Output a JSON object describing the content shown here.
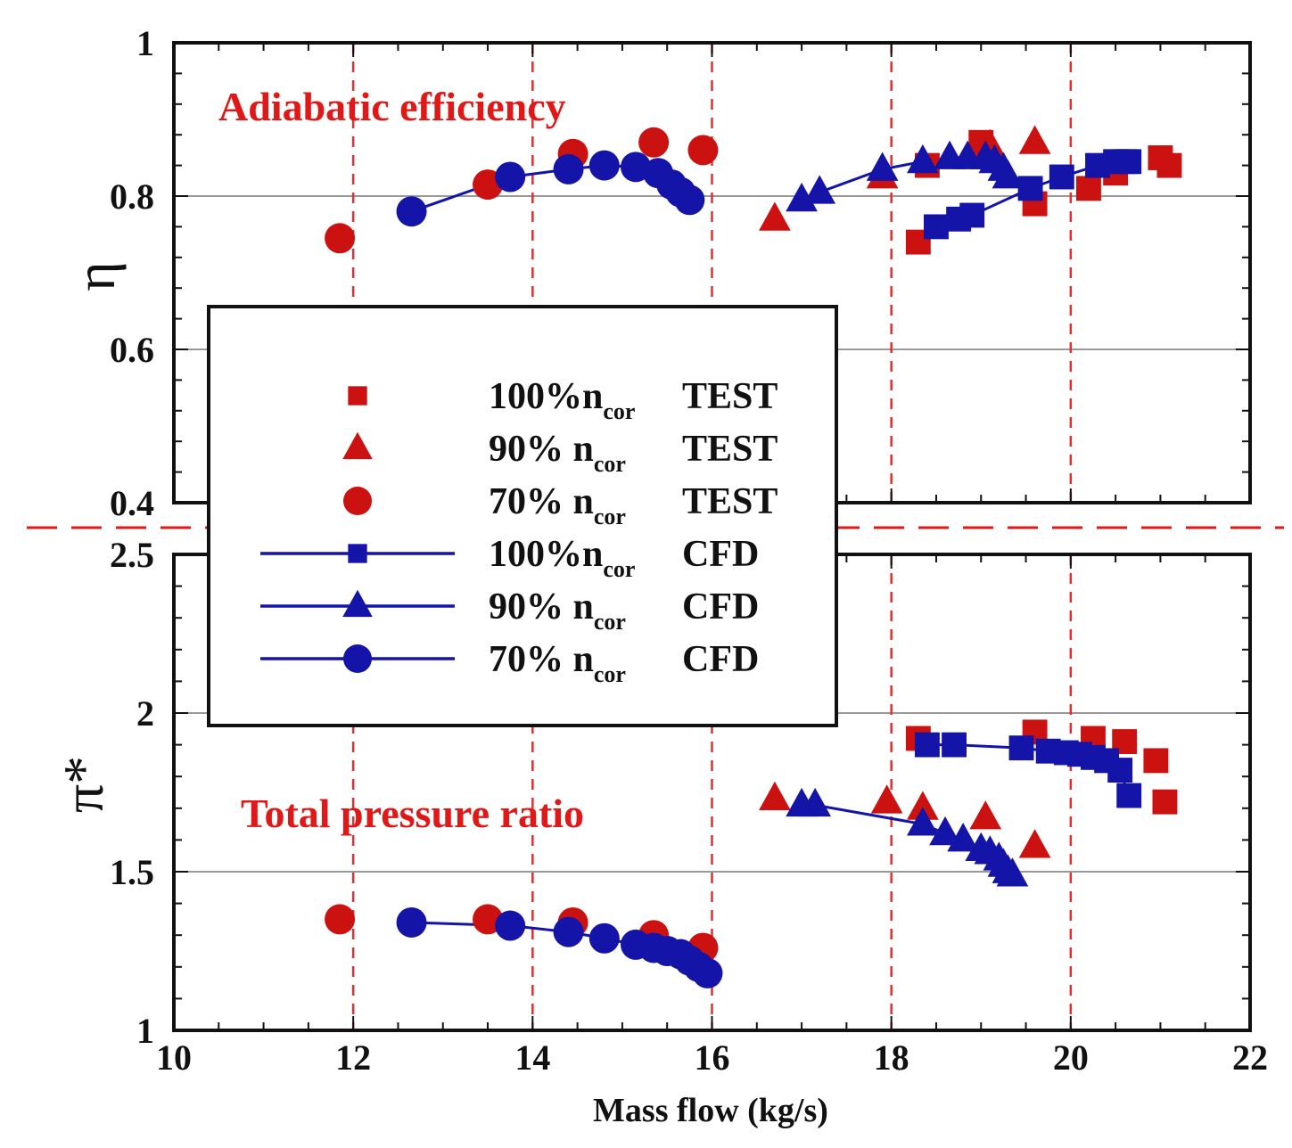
{
  "chart_data": [
    {
      "type": "scatter",
      "panel": "top",
      "title": "Adiabatic efficiency",
      "ylabel": "η",
      "xlim": [
        10,
        22
      ],
      "ylim": [
        0.4,
        1.0
      ],
      "yticks": [
        0.4,
        0.6,
        0.8,
        1.0
      ],
      "ytick_labels": [
        "0.4",
        "0.6",
        "0.8",
        "1"
      ],
      "xticks": [
        10,
        12,
        14,
        16,
        18,
        20,
        22
      ],
      "grid_h": [
        0.6,
        0.8
      ],
      "series": [
        {
          "name": "100%ncor TEST",
          "kind": "test",
          "marker": "square",
          "color": "#cc1111",
          "x": [
            18.3,
            18.4,
            19.0,
            19.6,
            20.2,
            20.5,
            21.0,
            21.1
          ],
          "y": [
            0.74,
            0.84,
            0.87,
            0.79,
            0.81,
            0.83,
            0.85,
            0.84
          ]
        },
        {
          "name": "90% ncor TEST",
          "kind": "test",
          "marker": "triangle",
          "color": "#cc1111",
          "x": [
            16.7,
            17.9,
            19.1,
            19.6
          ],
          "y": [
            0.77,
            0.825,
            0.865,
            0.87
          ]
        },
        {
          "name": "70% ncor TEST",
          "kind": "test",
          "marker": "circle",
          "color": "#cc1111",
          "x": [
            11.85,
            13.5,
            14.45,
            15.35,
            15.9
          ],
          "y": [
            0.745,
            0.815,
            0.855,
            0.87,
            0.86
          ]
        },
        {
          "name": "100%ncor CFD",
          "kind": "cfd",
          "marker": "square",
          "color": "#1414a8",
          "x": [
            18.5,
            18.75,
            18.9,
            19.55,
            19.9,
            20.3,
            20.5,
            20.6,
            20.65
          ],
          "y": [
            0.76,
            0.77,
            0.775,
            0.81,
            0.825,
            0.84,
            0.845,
            0.845,
            0.845
          ]
        },
        {
          "name": "90% ncor CFD",
          "kind": "cfd",
          "marker": "triangle",
          "color": "#1414a8",
          "x": [
            17.0,
            17.2,
            17.9,
            18.35,
            18.65,
            18.85,
            19.05,
            19.15,
            19.25,
            19.3
          ],
          "y": [
            0.795,
            0.805,
            0.835,
            0.845,
            0.85,
            0.85,
            0.85,
            0.845,
            0.835,
            0.825
          ]
        },
        {
          "name": "70% ncor CFD",
          "kind": "cfd",
          "marker": "circle",
          "color": "#1414a8",
          "x": [
            12.65,
            13.75,
            14.4,
            14.8,
            15.15,
            15.4,
            15.55,
            15.65,
            15.75
          ],
          "y": [
            0.78,
            0.825,
            0.835,
            0.84,
            0.838,
            0.83,
            0.815,
            0.805,
            0.795
          ]
        }
      ]
    },
    {
      "type": "scatter",
      "panel": "bottom",
      "title": "Total pressure ratio",
      "ylabel": "π*",
      "xlabel": "Mass flow (kg/s)",
      "xlim": [
        10,
        22
      ],
      "ylim": [
        1.0,
        2.5
      ],
      "yticks": [
        1.0,
        1.5,
        2.0,
        2.5
      ],
      "ytick_labels": [
        "1",
        "1.5",
        "2",
        "2.5"
      ],
      "xticks": [
        10,
        12,
        14,
        16,
        18,
        20,
        22
      ],
      "xtick_labels": [
        "10",
        "12",
        "14",
        "16",
        "18",
        "20",
        "22"
      ],
      "grid_h": [
        1.5,
        2.0
      ],
      "series": [
        {
          "name": "100%ncor TEST",
          "kind": "test",
          "marker": "square",
          "color": "#cc1111",
          "x": [
            18.3,
            19.6,
            20.25,
            20.6,
            20.95,
            21.05
          ],
          "y": [
            1.92,
            1.94,
            1.92,
            1.91,
            1.85,
            1.72
          ]
        },
        {
          "name": "90% ncor TEST",
          "kind": "test",
          "marker": "triangle",
          "color": "#cc1111",
          "x": [
            16.7,
            17.95,
            18.35,
            19.05,
            19.6
          ],
          "y": [
            1.73,
            1.72,
            1.7,
            1.67,
            1.58
          ]
        },
        {
          "name": "70% ncor TEST",
          "kind": "test",
          "marker": "circle",
          "color": "#cc1111",
          "x": [
            11.85,
            13.5,
            14.45,
            15.35,
            15.9
          ],
          "y": [
            1.35,
            1.35,
            1.34,
            1.3,
            1.26
          ]
        },
        {
          "name": "100%ncor CFD",
          "kind": "cfd",
          "marker": "square",
          "color": "#1414a8",
          "x": [
            18.4,
            18.7,
            19.45,
            19.75,
            19.95,
            20.1,
            20.25,
            20.4,
            20.55,
            20.65
          ],
          "y": [
            1.9,
            1.9,
            1.89,
            1.88,
            1.875,
            1.87,
            1.86,
            1.85,
            1.82,
            1.74
          ]
        },
        {
          "name": "90% ncor CFD",
          "kind": "cfd",
          "marker": "triangle",
          "color": "#1414a8",
          "x": [
            17.0,
            17.15,
            18.35,
            18.6,
            18.8,
            19.0,
            19.1,
            19.2,
            19.25,
            19.3,
            19.35
          ],
          "y": [
            1.71,
            1.71,
            1.65,
            1.62,
            1.6,
            1.57,
            1.56,
            1.54,
            1.52,
            1.5,
            1.49
          ]
        },
        {
          "name": "70% ncor CFD",
          "kind": "cfd",
          "marker": "circle",
          "color": "#1414a8",
          "x": [
            12.65,
            13.75,
            14.4,
            14.8,
            15.15,
            15.35,
            15.5,
            15.65,
            15.75,
            15.85,
            15.95
          ],
          "y": [
            1.34,
            1.33,
            1.31,
            1.29,
            1.27,
            1.26,
            1.25,
            1.24,
            1.22,
            1.2,
            1.18
          ]
        }
      ]
    }
  ],
  "legend": {
    "position": "center-left",
    "entries": [
      {
        "pct": "100%n",
        "sub": "cor",
        "type": "TEST",
        "marker": "square",
        "kind": "test"
      },
      {
        "pct": "90%  n",
        "sub": "cor",
        "type": "TEST",
        "marker": "triangle",
        "kind": "test"
      },
      {
        "pct": "70%  n",
        "sub": "cor",
        "type": "TEST",
        "marker": "circle",
        "kind": "test"
      },
      {
        "pct": "100%n",
        "sub": "cor",
        "type": "CFD",
        "marker": "square",
        "kind": "cfd"
      },
      {
        "pct": "90%  n",
        "sub": "cor",
        "type": "CFD",
        "marker": "triangle",
        "kind": "cfd"
      },
      {
        "pct": "70%  n",
        "sub": "cor",
        "type": "CFD",
        "marker": "circle",
        "kind": "cfd"
      }
    ]
  },
  "colors": {
    "test": "#cc1111",
    "cfd": "#1414a8",
    "divider": "#e01818",
    "vgrid": "#e03030",
    "hgrid": "#999999",
    "frame": "#111111"
  }
}
